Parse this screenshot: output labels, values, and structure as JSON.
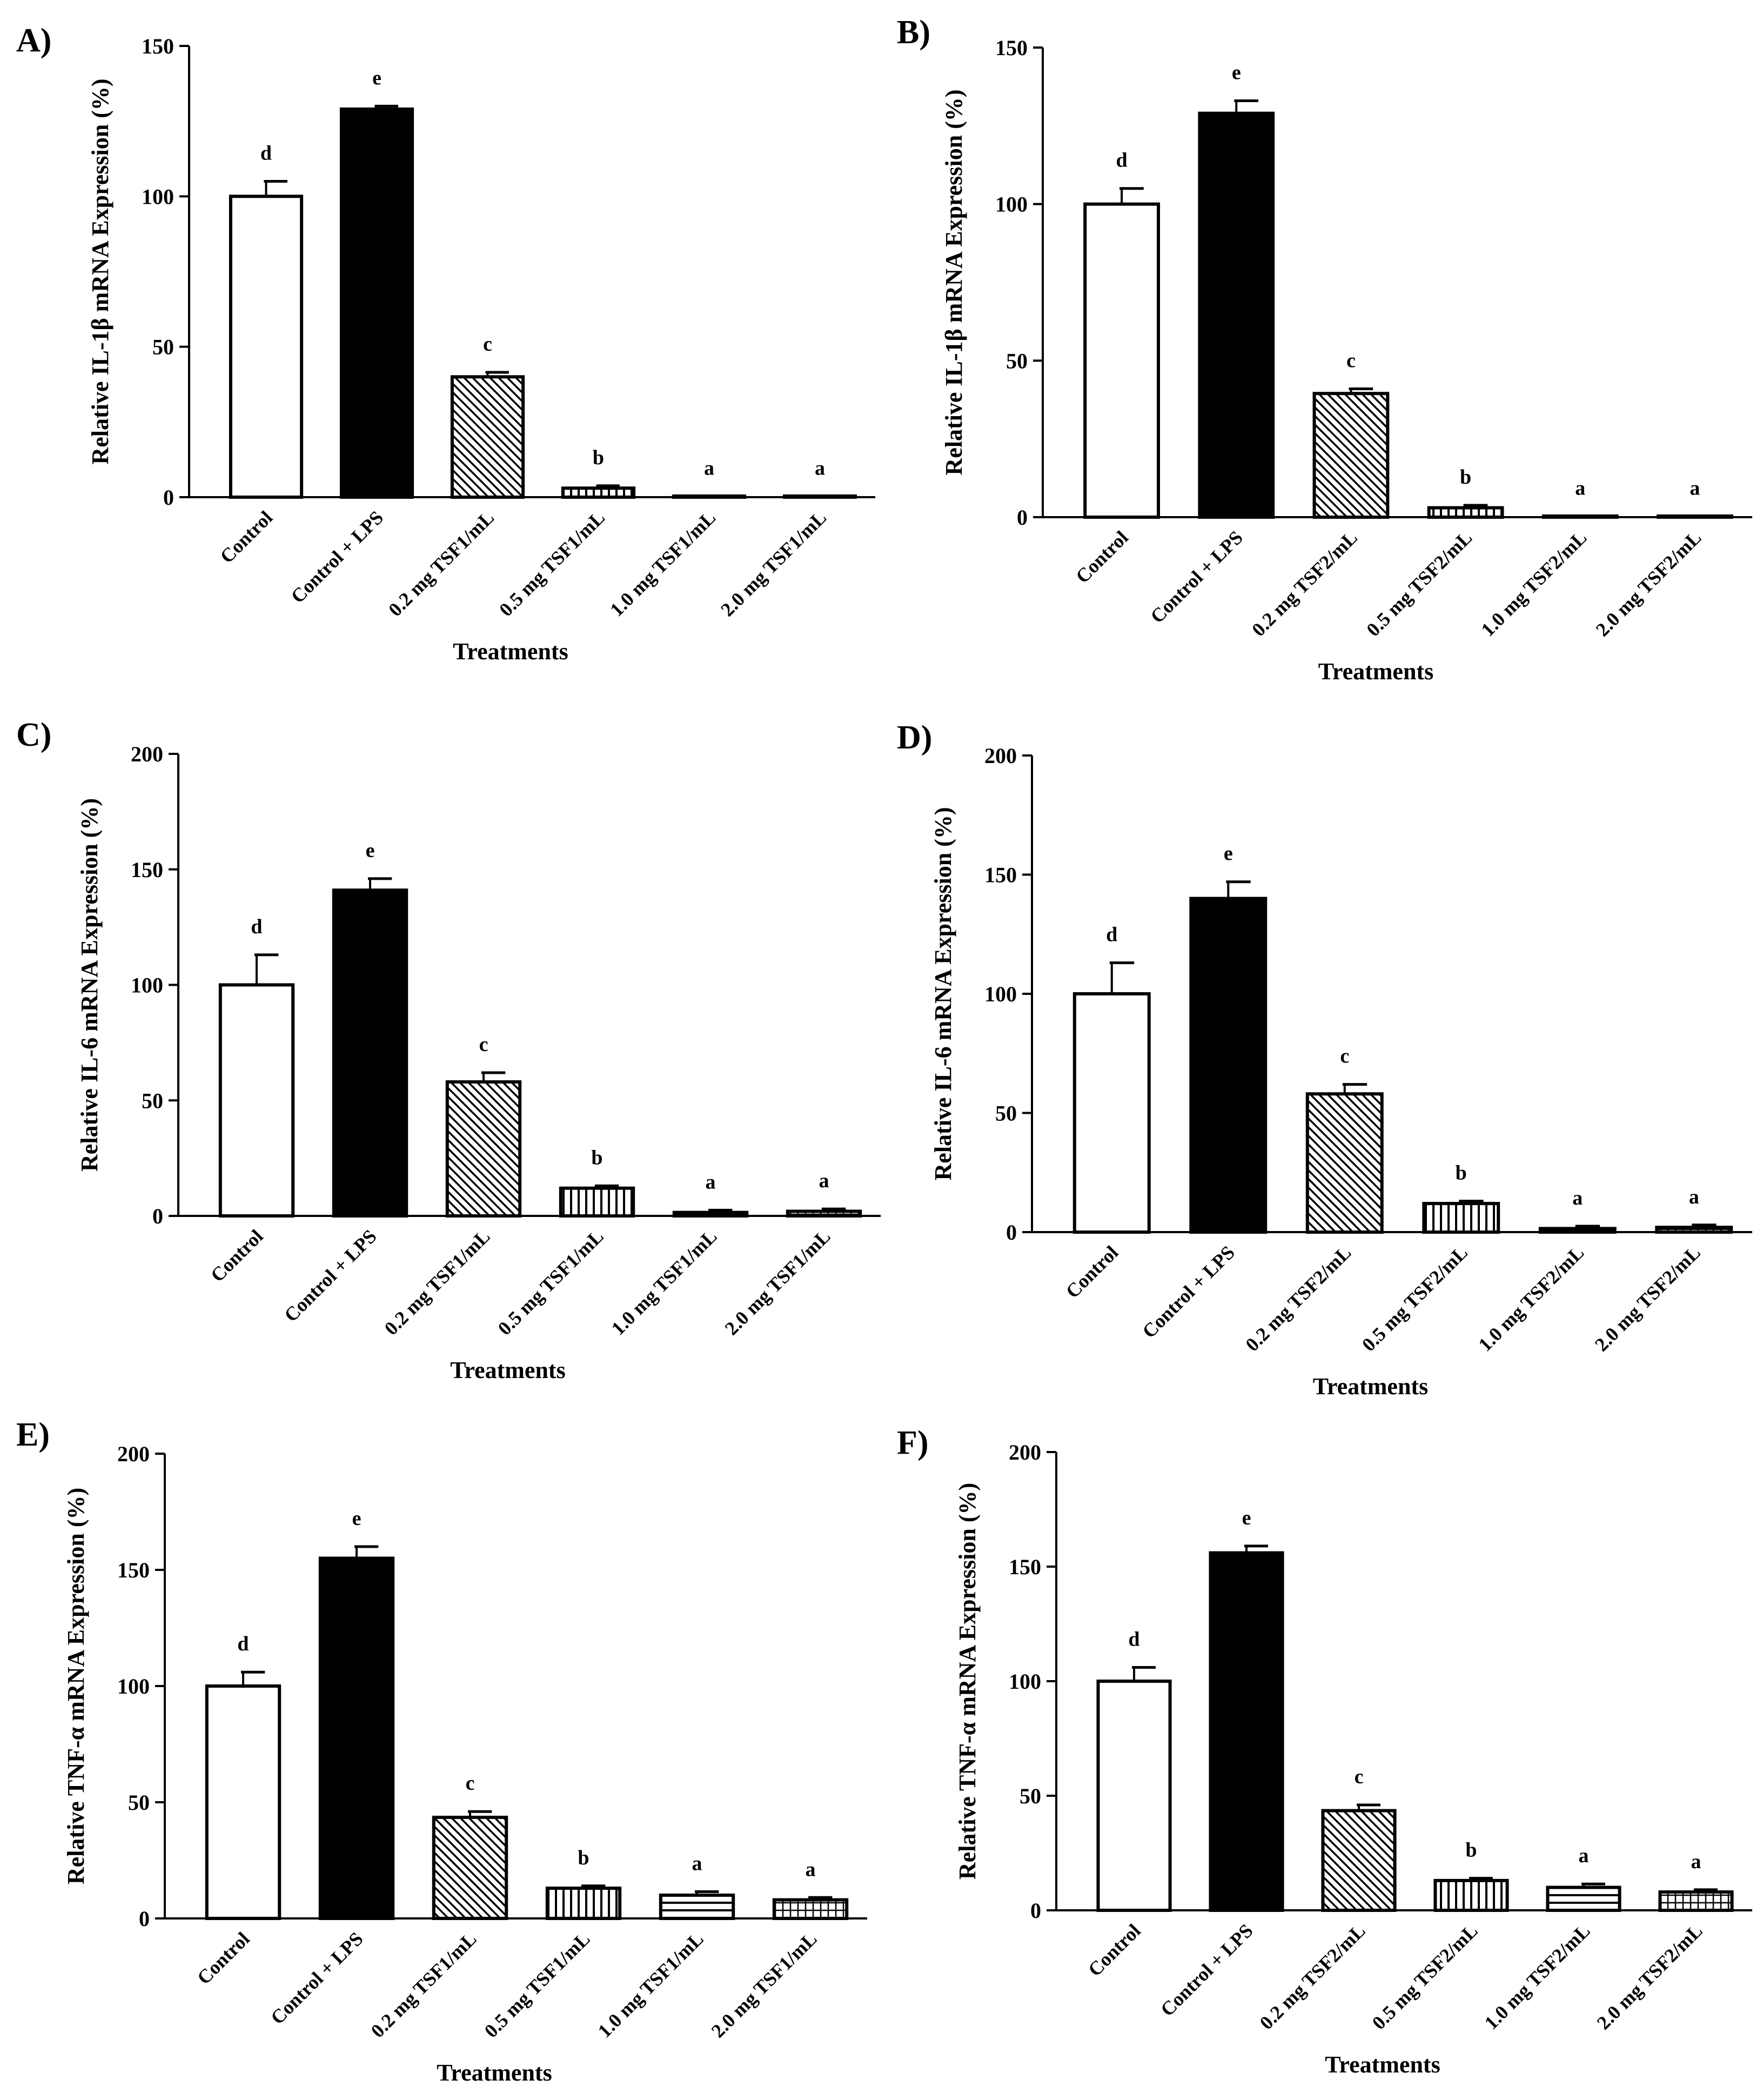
{
  "figure": {
    "type": "multi-panel bar chart"
  },
  "chart_data": [
    {
      "panel_label": "A)",
      "type": "bar",
      "ylabel": "Relative IL-1β mRNA Expression (%)",
      "xlabel": "Treatments",
      "categories": [
        "Control",
        "Control + LPS",
        "0.2 mg TSF1/mL",
        "0.5 mg TSF1/mL",
        "1.0 mg TSF1/mL",
        "2.0 mg TSF1/mL"
      ],
      "values": [
        100,
        129,
        40,
        3,
        0.2,
        0.2
      ],
      "errors": [
        5,
        1,
        1.5,
        0.8,
        0.1,
        0.1
      ],
      "letters": [
        "d",
        "e",
        "c",
        "b",
        "a",
        "a"
      ],
      "patterns": [
        "white",
        "black",
        "diag",
        "vert",
        "horiz",
        "grid"
      ],
      "ylim": [
        0,
        150
      ],
      "yticks": [
        0,
        50,
        100,
        150
      ]
    },
    {
      "panel_label": "B)",
      "type": "bar",
      "ylabel": "Relative IL-1β mRNA Expression (%)",
      "xlabel": "Treatments",
      "categories": [
        "Control",
        "Control + LPS",
        "0.2 mg TSF2/mL",
        "0.5 mg TSF2/mL",
        "1.0 mg TSF2/mL",
        "2.0 mg TSF2/mL"
      ],
      "values": [
        100,
        129,
        39.5,
        3,
        0.2,
        0.2
      ],
      "errors": [
        5,
        4,
        1.5,
        0.8,
        0.1,
        0.1
      ],
      "letters": [
        "d",
        "e",
        "c",
        "b",
        "a",
        "a"
      ],
      "patterns": [
        "white",
        "black",
        "diag",
        "vert",
        "horiz",
        "grid"
      ],
      "ylim": [
        0,
        150
      ],
      "yticks": [
        0,
        50,
        100,
        150
      ]
    },
    {
      "panel_label": "C)",
      "type": "bar",
      "ylabel": "Relative IL-6 mRNA Expression (%)",
      "xlabel": "Treatments",
      "categories": [
        "Control",
        "Control + LPS",
        "0.2 mg TSF1/mL",
        "0.5 mg TSF1/mL",
        "1.0 mg TSF1/mL",
        "2.0 mg TSF1/mL"
      ],
      "values": [
        100,
        141,
        58,
        12,
        1.5,
        2
      ],
      "errors": [
        13,
        5,
        4,
        1,
        1,
        1
      ],
      "letters": [
        "d",
        "e",
        "c",
        "b",
        "a",
        "a"
      ],
      "patterns": [
        "white",
        "black",
        "diag",
        "vert",
        "horiz",
        "grid"
      ],
      "ylim": [
        0,
        200
      ],
      "yticks": [
        0,
        50,
        100,
        150,
        200
      ]
    },
    {
      "panel_label": "D)",
      "type": "bar",
      "ylabel": "Relative IL-6 mRNA Expression (%)",
      "xlabel": "Treatments",
      "categories": [
        "Control",
        "Control + LPS",
        "0.2 mg TSF2/mL",
        "0.5 mg TSF2/mL",
        "1.0 mg TSF2/mL",
        "2.0 mg TSF2/mL"
      ],
      "values": [
        100,
        140,
        58,
        12,
        1.5,
        2
      ],
      "errors": [
        13,
        7,
        4,
        1,
        1,
        1
      ],
      "letters": [
        "d",
        "e",
        "c",
        "b",
        "a",
        "a"
      ],
      "patterns": [
        "white",
        "black",
        "diag",
        "vert",
        "horiz",
        "grid"
      ],
      "ylim": [
        0,
        200
      ],
      "yticks": [
        0,
        50,
        100,
        150,
        200
      ]
    },
    {
      "panel_label": "E)",
      "type": "bar",
      "ylabel": "Relative TNF-α mRNA Expression (%)",
      "xlabel": "Treatments",
      "categories": [
        "Control",
        "Control + LPS",
        "0.2 mg TSF1/mL",
        "0.5 mg TSF1/mL",
        "1.0 mg TSF1/mL",
        "2.0 mg TSF1/mL"
      ],
      "values": [
        100,
        155,
        43.5,
        13,
        10,
        8
      ],
      "errors": [
        6,
        5,
        2.5,
        1,
        1.5,
        1
      ],
      "letters": [
        "d",
        "e",
        "c",
        "b",
        "a",
        "a"
      ],
      "patterns": [
        "white",
        "black",
        "diag",
        "vert",
        "horiz",
        "grid"
      ],
      "ylim": [
        0,
        200
      ],
      "yticks": [
        0,
        50,
        100,
        150,
        200
      ]
    },
    {
      "panel_label": "F)",
      "type": "bar",
      "ylabel": "Relative TNF-α mRNA Expression (%)",
      "xlabel": "Treatments",
      "categories": [
        "Control",
        "Control + LPS",
        "0.2 mg TSF2/mL",
        "0.5 mg TSF2/mL",
        "1.0 mg TSF2/mL",
        "2.0 mg TSF2/mL"
      ],
      "values": [
        100,
        156,
        43.5,
        13,
        10,
        8
      ],
      "errors": [
        6,
        3,
        2.5,
        1,
        1.5,
        1
      ],
      "letters": [
        "d",
        "e",
        "c",
        "b",
        "a",
        "a"
      ],
      "patterns": [
        "white",
        "black",
        "diag",
        "vert",
        "horiz",
        "grid"
      ],
      "ylim": [
        0,
        200
      ],
      "yticks": [
        0,
        50,
        100,
        150,
        200
      ]
    }
  ]
}
